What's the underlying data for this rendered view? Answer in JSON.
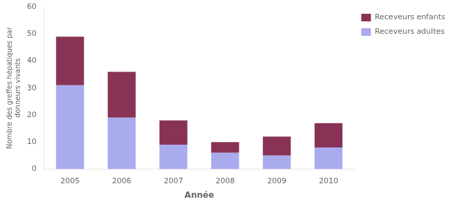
{
  "chart_data": {
    "type": "bar",
    "stacked": true,
    "categories": [
      "2005",
      "2006",
      "2007",
      "2008",
      "2009",
      "2010"
    ],
    "series": [
      {
        "name": "Receveurs adultes",
        "color": "#aaaaee",
        "values": [
          31,
          19,
          9,
          6,
          5,
          8
        ]
      },
      {
        "name": "Receveurs enfants",
        "color": "#883355",
        "values": [
          18,
          17,
          9,
          4,
          7,
          9
        ]
      }
    ],
    "xlabel": "Année",
    "ylabel": "Nombre des greffes hépatiques par\ndonneurs vivants",
    "ylim": [
      0,
      60
    ],
    "yticks": [
      0,
      10,
      20,
      30,
      40,
      50,
      60
    ],
    "grid": false,
    "legend": "right"
  }
}
